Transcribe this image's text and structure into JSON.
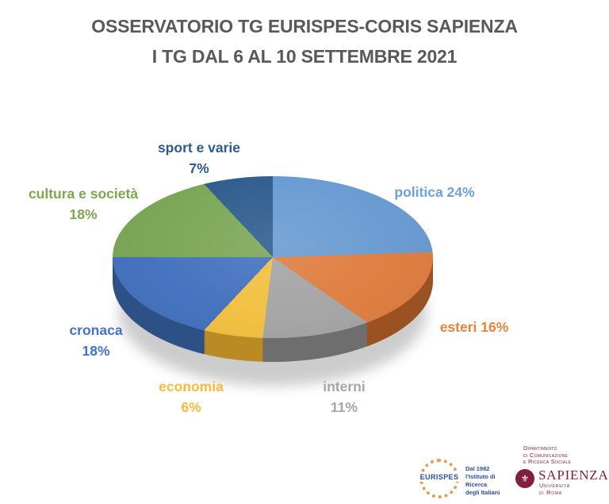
{
  "title": {
    "line1": "OSSERVATORIO TG EURISPES-CORIS SAPIENZA",
    "line2": "I TG DAL 6 AL 10 SETTEMBRE 2021",
    "color": "#595959"
  },
  "chart_data": {
    "type": "pie",
    "style": "3d",
    "title": "OSSERVATORIO TG EURISPES-CORIS SAPIENZA — I TG DAL 6 AL 10 SETTEMBRE 2021",
    "unit": "%",
    "start_angle_deg": 0,
    "direction": "clockwise",
    "legend_position": "outside-data-labels",
    "categories": [
      "politica",
      "esteri",
      "interni",
      "economia",
      "cronaca",
      "cultura e società",
      "sport e varie"
    ],
    "values": [
      24,
      16,
      11,
      6,
      18,
      18,
      7
    ],
    "slices": [
      {
        "label": "politica",
        "value": 24,
        "pct_text": "24%",
        "inline_text": "politica 24%",
        "color": "#6A9CD2",
        "side_color": "#4C78A8",
        "label_color": "#6FA0D8"
      },
      {
        "label": "esteri",
        "value": 16,
        "pct_text": "16%",
        "inline_text": "esteri 16%",
        "color": "#DF7F43",
        "side_color": "#9A5223",
        "label_color": "#E8823C"
      },
      {
        "label": "interni",
        "value": 11,
        "pct_text": "11%",
        "inline_text": "interni 11%",
        "color": "#A6A6A6",
        "side_color": "#6E6E6E",
        "label_color": "#A6A6A6"
      },
      {
        "label": "economia",
        "value": 6,
        "pct_text": "6%",
        "inline_text": "economia 6%",
        "color": "#F2C143",
        "side_color": "#BA8B24",
        "label_color": "#FBB93C"
      },
      {
        "label": "cronaca",
        "value": 18,
        "pct_text": "18%",
        "inline_text": "cronaca 18%",
        "color": "#4673BF",
        "side_color": "#2D5086",
        "label_color": "#4472C4"
      },
      {
        "label": "cultura e società",
        "value": 18,
        "pct_text": "18%",
        "inline_text": "cultura e società 18%",
        "color": "#7CA757",
        "side_color": "#557A36",
        "label_color": "#7BA84F"
      },
      {
        "label": "sport e varie",
        "value": 7,
        "pct_text": "7%",
        "inline_text": "sport e varie 7%",
        "color": "#305E8F",
        "side_color": "#1E3F63",
        "label_color": "#2E5B8C"
      }
    ]
  },
  "footer": {
    "eurispes": {
      "wordmark": "EURISPES",
      "line1": "Dal 1982",
      "line2": "l'Istituto di Ricerca",
      "line3": "degli Italiani",
      "brand_blue": "#2B4EA2",
      "brand_orange": "#E89A50"
    },
    "sapienza": {
      "dept_line1": "Dipartimento",
      "dept_line2": "di Comunicazione",
      "dept_line3": "e Ricerca Sociale",
      "wordmark": "SAPIENZA",
      "subtitle": "Università di Roma",
      "brand_maroon": "#82203B"
    }
  }
}
